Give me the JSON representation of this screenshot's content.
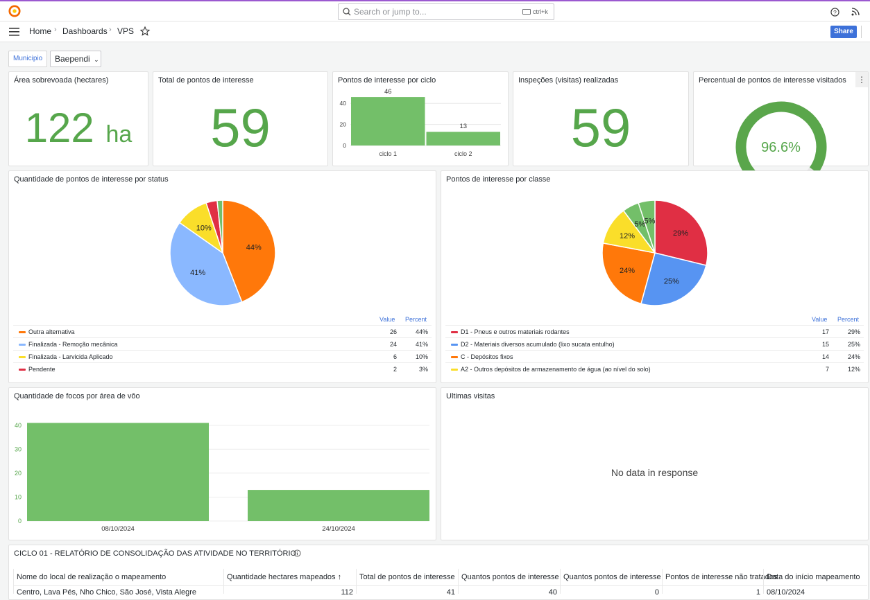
{
  "search": {
    "placeholder": "Search or jump to...",
    "shortcut": "ctrl+k"
  },
  "breadcrumb": {
    "home": "Home",
    "dashboards": "Dashboards",
    "current": "VPS"
  },
  "actions": {
    "share": "Share"
  },
  "variable": {
    "label": "Municipio",
    "value": "Baependi"
  },
  "colors": {
    "green": "#56a64b",
    "blue": "#3d71d9",
    "orange": "#ff780a",
    "lightblue": "#8ab8ff",
    "yellow": "#fade2a",
    "red": "#e02f44"
  },
  "stats": {
    "area": {
      "title": "Área sobrevoada (hectares)",
      "value": "122",
      "unit": "ha"
    },
    "total": {
      "title": "Total de pontos de interesse",
      "value": "59"
    },
    "inspections": {
      "title": "Inspeções (visitas) realizadas",
      "value": "59"
    },
    "visited": {
      "title": "Percentual de pontos de interesse visitados",
      "value": "96.6%",
      "fraction": 0.966,
      "menu": "⋮"
    }
  },
  "cycle_chart": {
    "title": "Pontos de interesse por ciclo",
    "value_labels": [
      "46",
      "13"
    ],
    "tick_labels": [
      "40",
      "20",
      "0"
    ],
    "category_labels": [
      "ciclo 1",
      "ciclo 2"
    ]
  },
  "status_chart": {
    "title": "Quantidade de pontos de interesse por status",
    "slice_labels": [
      "44%",
      "41%",
      "10%"
    ],
    "legend_value": "Value",
    "legend_percent": "Percent",
    "legend": [
      {
        "name": "Outra alternativa",
        "value": "26",
        "percent": "44%"
      },
      {
        "name": "Finalizada - Remoção mecânica",
        "value": "24",
        "percent": "41%"
      },
      {
        "name": "Finalizada - Larvicida Aplicado",
        "value": "6",
        "percent": "10%"
      },
      {
        "name": "Pendente",
        "value": "2",
        "percent": "3%"
      }
    ]
  },
  "class_chart": {
    "title": "Pontos de interesse por classe",
    "slice_labels": [
      "29%",
      "25%",
      "24%",
      "12%",
      "5%",
      "5%"
    ],
    "legend_value": "Value",
    "legend_percent": "Percent",
    "legend": [
      {
        "name": "D1 - Pneus e outros materiais rodantes",
        "value": "17",
        "percent": "29%"
      },
      {
        "name": "D2 - Materiais diversos acumulado (lixo sucata entulho)",
        "value": "15",
        "percent": "25%"
      },
      {
        "name": "C - Depósitos fixos",
        "value": "14",
        "percent": "24%"
      },
      {
        "name": "A2 - Outros depósitos de armazenamento de água (ao nível do solo)",
        "value": "7",
        "percent": "12%"
      }
    ]
  },
  "focos_chart": {
    "title": "Quantidade de focos por área de vôo",
    "tick_labels": [
      "40",
      "30",
      "20",
      "10",
      "0"
    ],
    "category_labels": [
      "08/10/2024",
      "24/10/2024"
    ]
  },
  "visits": {
    "title": "Ultimas visitas",
    "empty": "No data in response"
  },
  "report": {
    "title": "CICLO 01 - RELATÓRIO DE CONSOLIDAÇÃO DAS ATIVIDADE NO TERRITÓRIO",
    "columns": [
      "Nome do local de realização o mapeamento",
      "Quantidade hectares mapeados ↑",
      "Total de pontos de interesse",
      "Quantos pontos de interesse",
      "Quantos pontos de interesse",
      "Pontos de interesse não tratados",
      "Data do início mapeamento"
    ],
    "row": [
      "Centro, Lava Pés, Nho Chico, São José, Vista Alegre",
      "112",
      "41",
      "40",
      "0",
      "1",
      "08/10/2024"
    ]
  },
  "chart_data": [
    {
      "type": "bar",
      "title": "Pontos de interesse por ciclo",
      "categories": [
        "ciclo 1",
        "ciclo 2"
      ],
      "values": [
        46,
        13
      ],
      "ylim": [
        0,
        50
      ]
    },
    {
      "type": "pie",
      "title": "Quantidade de pontos de interesse por status",
      "categories": [
        "Outra alternativa",
        "Finalizada - Remoção mecânica",
        "Finalizada - Larvicida Aplicado",
        "Pendente"
      ],
      "values": [
        26,
        24,
        6,
        2
      ],
      "percent": [
        44,
        41,
        10,
        3
      ],
      "colors": [
        "#ff780a",
        "#8ab8ff",
        "#fade2a",
        "#e02f44"
      ]
    },
    {
      "type": "pie",
      "title": "Pontos de interesse por classe",
      "categories": [
        "D1 - Pneus e outros materiais rodantes",
        "D2 - Materiais diversos acumulado (lixo sucata entulho)",
        "C - Depósitos fixos",
        "A2 - Outros depósitos de armazenamento de água (ao nível do solo)"
      ],
      "values": [
        17,
        15,
        14,
        7
      ],
      "percent": [
        29,
        25,
        24,
        12
      ],
      "colors": [
        "#e02f44",
        "#5794f2",
        "#ff780a",
        "#fade2a"
      ]
    },
    {
      "type": "bar",
      "title": "Quantidade de focos por área de vôo",
      "categories": [
        "08/10/2024",
        "24/10/2024"
      ],
      "values": [
        41,
        13
      ],
      "ylim": [
        0,
        44
      ]
    }
  ]
}
